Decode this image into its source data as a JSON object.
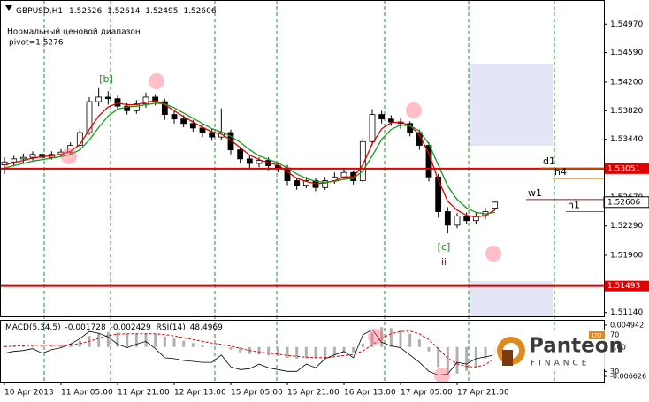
{
  "chart_data": {
    "type": "candlestick",
    "symbol": "GBPUSD,H1",
    "note": "Нормальный ценовой диапазон",
    "pivot": "pivot=1.5276",
    "categories": [
      "10 Apr 2013",
      null,
      null,
      null,
      null,
      null,
      "11 Apr 05:00",
      null,
      null,
      null,
      null,
      null,
      "11 Apr 21:00",
      null,
      null,
      null,
      null,
      null,
      "12 Apr 13:00",
      null,
      null,
      null,
      null,
      null,
      "15 Apr 05:00",
      null,
      null,
      null,
      null,
      null,
      "15 Apr 21:00",
      null,
      null,
      null,
      null,
      null,
      "16 Apr 13:00",
      null,
      null,
      null,
      null,
      null,
      "17 Apr 05:00",
      null,
      null,
      null,
      null,
      null,
      "17 Apr 21:00",
      null,
      null,
      null,
      null
    ],
    "candles": {
      "open": [
        1.531,
        1.5314,
        1.5318,
        1.532,
        1.5324,
        1.532,
        1.5324,
        1.5327,
        1.5336,
        1.5353,
        1.5394,
        1.54,
        1.5398,
        1.5388,
        1.5382,
        1.5391,
        1.54,
        1.5394,
        1.5377,
        1.5371,
        1.5365,
        1.5359,
        1.5353,
        1.5347,
        1.5353,
        1.533,
        1.5318,
        1.5312,
        1.5316,
        1.5309,
        1.5306,
        1.5289,
        1.5283,
        1.5289,
        1.528,
        1.5289,
        1.5294,
        1.53,
        1.5289,
        1.5341,
        1.5377,
        1.5371,
        1.5367,
        1.5365,
        1.5353,
        1.5336,
        1.5294,
        1.5248,
        1.523,
        1.5242,
        1.5236,
        1.5242,
        1.52526
      ],
      "high": [
        1.532,
        1.5322,
        1.5325,
        1.5328,
        1.5327,
        1.5328,
        1.5331,
        1.534,
        1.5358,
        1.54,
        1.5412,
        1.5408,
        1.5402,
        1.5392,
        1.5396,
        1.5406,
        1.5404,
        1.5398,
        1.5382,
        1.5376,
        1.537,
        1.5363,
        1.5358,
        1.5385,
        1.5357,
        1.5334,
        1.5322,
        1.532,
        1.532,
        1.5313,
        1.531,
        1.5293,
        1.5294,
        1.5292,
        1.5294,
        1.53,
        1.5306,
        1.5303,
        1.5346,
        1.5384,
        1.5382,
        1.5376,
        1.5372,
        1.5368,
        1.5357,
        1.534,
        1.5298,
        1.5254,
        1.5246,
        1.5247,
        1.5247,
        1.5253,
        1.52614
      ],
      "low": [
        1.5298,
        1.5308,
        1.5313,
        1.5316,
        1.5316,
        1.5317,
        1.532,
        1.5323,
        1.5332,
        1.535,
        1.5388,
        1.539,
        1.5383,
        1.5377,
        1.5378,
        1.5386,
        1.5389,
        1.537,
        1.5365,
        1.536,
        1.5354,
        1.5347,
        1.5342,
        1.5343,
        1.5324,
        1.5312,
        1.5306,
        1.5307,
        1.5303,
        1.53,
        1.5283,
        1.5277,
        1.5279,
        1.5275,
        1.5277,
        1.5285,
        1.529,
        1.5284,
        1.5286,
        1.5336,
        1.5365,
        1.5362,
        1.5358,
        1.5348,
        1.533,
        1.5288,
        1.524,
        1.5219,
        1.5226,
        1.5231,
        1.5232,
        1.5238,
        1.52495
      ],
      "close": [
        1.5314,
        1.5318,
        1.532,
        1.5324,
        1.532,
        1.5324,
        1.5327,
        1.5336,
        1.5353,
        1.5394,
        1.54,
        1.5398,
        1.5388,
        1.5382,
        1.5391,
        1.54,
        1.5394,
        1.5377,
        1.5371,
        1.5365,
        1.5359,
        1.5353,
        1.5347,
        1.5353,
        1.533,
        1.5318,
        1.5312,
        1.5316,
        1.5309,
        1.5306,
        1.5289,
        1.5283,
        1.5289,
        1.528,
        1.5289,
        1.5294,
        1.53,
        1.5289,
        1.5341,
        1.5377,
        1.5371,
        1.5367,
        1.5365,
        1.5353,
        1.5336,
        1.5294,
        1.5248,
        1.523,
        1.5242,
        1.5236,
        1.5242,
        1.5248,
        1.52606
      ]
    },
    "bull_color": "#ffffff",
    "bear_color": "#000000",
    "series": [
      {
        "color": "#e00000",
        "values": [
          1.531,
          1.5313,
          1.5316,
          1.5319,
          1.5321,
          1.5322,
          1.5324,
          1.5328,
          1.5337,
          1.5357,
          1.5375,
          1.5387,
          1.5392,
          1.539,
          1.539,
          1.5393,
          1.5395,
          1.539,
          1.5382,
          1.5374,
          1.5367,
          1.536,
          1.5354,
          1.5351,
          1.5343,
          1.5333,
          1.5323,
          1.5317,
          1.5313,
          1.531,
          1.5301,
          1.5292,
          1.5288,
          1.5285,
          1.5286,
          1.5289,
          1.5294,
          1.5294,
          1.531,
          1.5338,
          1.5358,
          1.5366,
          1.5367,
          1.5362,
          1.535,
          1.5325,
          1.529,
          1.5262,
          1.525,
          1.5243,
          1.5241,
          1.5243,
          1.525
        ]
      },
      {
        "color": "#1a9a1a",
        "values": [
          1.5306,
          1.5309,
          1.5312,
          1.5315,
          1.5317,
          1.5319,
          1.5321,
          1.5324,
          1.533,
          1.5343,
          1.536,
          1.5375,
          1.5384,
          1.5387,
          1.5388,
          1.539,
          1.5392,
          1.5391,
          1.5386,
          1.5379,
          1.5372,
          1.5365,
          1.5358,
          1.5354,
          1.5348,
          1.534,
          1.533,
          1.5322,
          1.5317,
          1.5313,
          1.5306,
          1.5298,
          1.5292,
          1.5288,
          1.5287,
          1.5288,
          1.5291,
          1.5292,
          1.5302,
          1.5322,
          1.5344,
          1.5357,
          1.5363,
          1.5362,
          1.5355,
          1.5338,
          1.531,
          1.5282,
          1.5264,
          1.5253,
          1.5247,
          1.5245,
          1.5247
        ]
      }
    ],
    "ylim": [
      1.5109,
      1.5529
    ],
    "yticks": [
      {
        "value": 1.5497,
        "label": "1.54970"
      },
      {
        "value": 1.5459,
        "label": "1.54590"
      },
      {
        "value": 1.542,
        "label": "1.54200"
      },
      {
        "value": 1.5382,
        "label": "1.53820"
      },
      {
        "value": 1.5344,
        "label": "1.53440"
      },
      {
        "value": 1.5267,
        "label": "1.52670"
      },
      {
        "value": 1.5229,
        "label": "1.52290"
      },
      {
        "value": 1.519,
        "label": "1.51900"
      },
      {
        "value": 1.5114,
        "label": "1.51140"
      }
    ],
    "hlines": [
      {
        "value": 1.53051,
        "color": "#e00000"
      },
      {
        "value": 1.51493,
        "color": "#e00000"
      }
    ],
    "levels": [
      {
        "name": "d1",
        "value": 1.5306,
        "color": "#cc6600"
      },
      {
        "name": "h4",
        "value": 1.5292,
        "color": "#cc6600"
      },
      {
        "name": "w1",
        "value": 1.5264,
        "color": "#8b1a1a"
      },
      {
        "name": "h1",
        "value": 1.5248,
        "color": "#2a9a2a"
      }
    ],
    "annotations": [
      "[b]",
      "[c]",
      "ii"
    ],
    "macd": {
      "label": "MACD(5,34,5)",
      "main": -0.001728,
      "signal_value": -0.002429,
      "ylim": [
        -0.006626,
        0.004942
      ],
      "yticks": [
        0.004942,
        {
          "value": 0,
          "label": "0.00"
        },
        -0.006626
      ],
      "hist": [
        0.0002,
        0.0003,
        0.0004,
        0.0005,
        0.0004,
        0.0004,
        0.0005,
        0.0008,
        0.0014,
        0.0025,
        0.0032,
        0.0034,
        0.0033,
        0.003,
        0.003,
        0.0031,
        0.0029,
        0.0024,
        0.0019,
        0.0014,
        0.0009,
        0.0005,
        0.0001,
        0.0,
        -0.0006,
        -0.0012,
        -0.0016,
        -0.0017,
        -0.0019,
        -0.002,
        -0.0024,
        -0.0026,
        -0.0025,
        -0.0026,
        -0.0023,
        -0.0019,
        -0.0014,
        -0.0012,
        0.0008,
        0.0032,
        0.0045,
        0.0043,
        0.0038,
        0.003,
        0.0017,
        -0.001,
        -0.0045,
        -0.0062,
        -0.006,
        -0.0054,
        -0.0045,
        -0.0026,
        -0.0017
      ],
      "signal": [
        0.0001,
        0.0002,
        0.0003,
        0.0004,
        0.0004,
        0.0004,
        0.0004,
        0.0005,
        0.0008,
        0.0013,
        0.002,
        0.0026,
        0.0029,
        0.003,
        0.003,
        0.003,
        0.003,
        0.0028,
        0.0025,
        0.0021,
        0.0017,
        0.0013,
        0.0009,
        0.0006,
        0.0002,
        -0.0003,
        -0.0008,
        -0.0011,
        -0.0014,
        -0.0016,
        -0.0019,
        -0.0021,
        -0.0023,
        -0.0024,
        -0.0024,
        -0.0022,
        -0.0019,
        -0.0017,
        -0.0009,
        0.0005,
        0.002,
        0.003,
        0.0035,
        0.0036,
        0.003,
        0.0017,
        -0.0004,
        -0.0025,
        -0.0038,
        -0.0044,
        -0.0045,
        -0.004,
        -0.0024
      ],
      "hist_color": "#b0b0b0",
      "signal_color": "#e00000"
    },
    "rsi": {
      "label": "RSI(14)",
      "value": 48.4969,
      "ylim": [
        24.5,
        80.9
      ],
      "yticks": [
        70,
        30
      ],
      "color": "#000000",
      "values": [
        50,
        52,
        53,
        55,
        50,
        54,
        56,
        60,
        66,
        74,
        72,
        68,
        60,
        56,
        60,
        63,
        55,
        45,
        44,
        42,
        41,
        40,
        40,
        48,
        35,
        32,
        33,
        38,
        34,
        32,
        30,
        30,
        38,
        34,
        44,
        48,
        52,
        45,
        70,
        76,
        62,
        58,
        56,
        48,
        40,
        30,
        26,
        27,
        40,
        38,
        44,
        46,
        48
      ]
    }
  },
  "logo": {
    "name": "Panteon",
    "sub": "FINANCE",
    "badge": "LTD"
  }
}
